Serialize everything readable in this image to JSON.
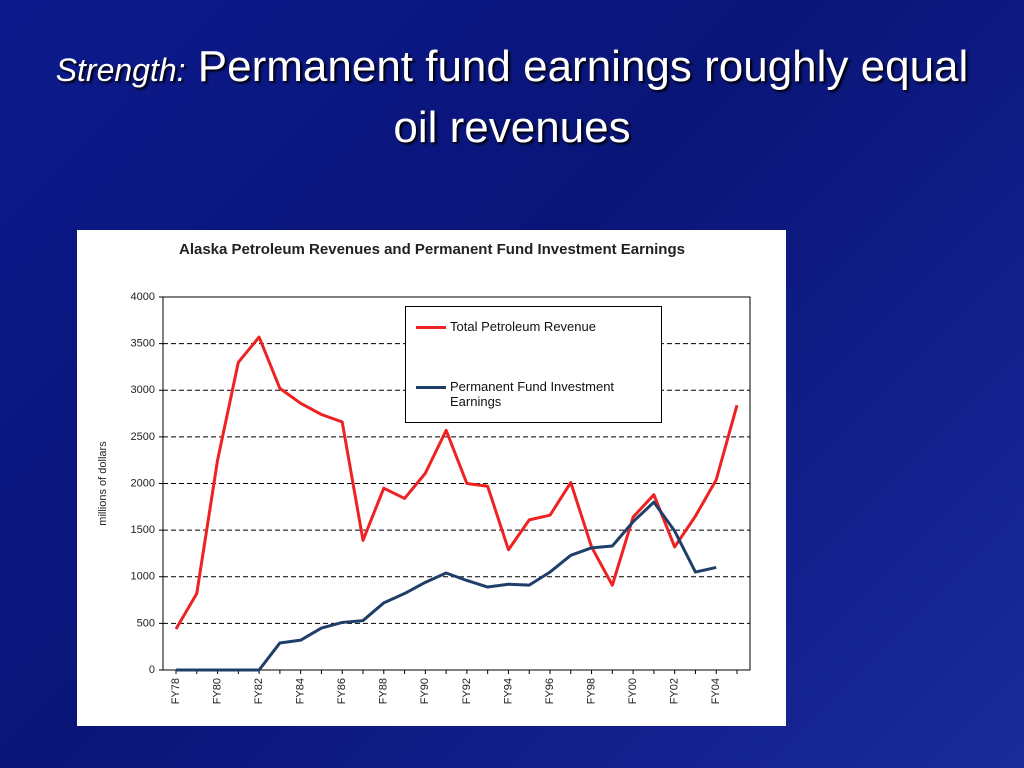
{
  "slide": {
    "title_prefix": "Strength:",
    "title": "Permanent fund earnings roughly equal oil revenues"
  },
  "chart_data": {
    "type": "line",
    "title": "Alaska Petroleum Revenues and Permanent Fund Investment Earnings",
    "y_label": "millions of dollars",
    "categories": [
      "FY78",
      null,
      "FY80",
      null,
      "FY82",
      null,
      "FY84",
      null,
      "FY86",
      null,
      "FY88",
      null,
      "FY90",
      null,
      "FY92",
      null,
      "FY94",
      null,
      "FY96",
      null,
      "FY98",
      null,
      "FY00",
      null,
      "FY02",
      null,
      "FY04",
      null
    ],
    "series": [
      {
        "name": "Total Petroleum Revenue",
        "color": "#ee2222",
        "values": [
          440,
          820,
          2250,
          3300,
          3570,
          3020,
          2860,
          2740,
          2660,
          1390,
          1950,
          1840,
          2110,
          2570,
          2000,
          1970,
          1290,
          1610,
          1660,
          2010,
          1320,
          910,
          1640,
          1880,
          1320,
          1650,
          2040,
          2840
        ]
      },
      {
        "name": "Permanent Fund Investment Earnings",
        "color": "#1f3f6a",
        "values": [
          0,
          0,
          0,
          0,
          0,
          290,
          320,
          450,
          510,
          530,
          720,
          820,
          940,
          1040,
          960,
          890,
          920,
          910,
          1050,
          1230,
          1310,
          1330,
          1590,
          1800,
          1490,
          1050,
          1100,
          null
        ]
      }
    ],
    "ylim": [
      0,
      4000
    ],
    "yticks": [
      0,
      500,
      1000,
      1500,
      2000,
      2500,
      3000,
      3500,
      4000
    ],
    "grid": true,
    "legend": "upper right"
  }
}
